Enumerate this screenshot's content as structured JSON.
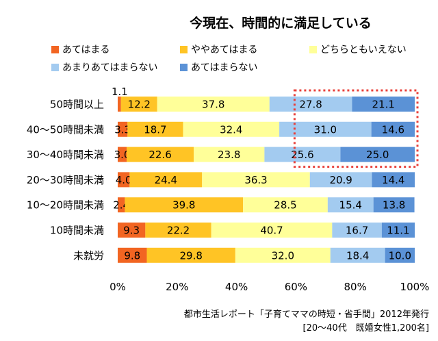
{
  "chart_data": {
    "type": "bar",
    "orientation": "horizontal",
    "stacked": "percent",
    "title": "今現在、時間的に満足している",
    "categories": [
      "50時間以上",
      "40～50時間未満",
      "30～40時間未満",
      "20～30時間未満",
      "10～20時間未満",
      "10時間未満",
      "未就労"
    ],
    "series": [
      {
        "name": "あてはまる",
        "color": "#f26522",
        "values": [
          1.1,
          3.3,
          3.0,
          4.0,
          2.4,
          9.3,
          9.8
        ]
      },
      {
        "name": "ややあてはまる",
        "color": "#ffc425",
        "values": [
          12.2,
          18.7,
          22.6,
          24.4,
          39.8,
          22.2,
          29.8
        ]
      },
      {
        "name": "どちらともいえない",
        "color": "#ffff99",
        "values": [
          37.8,
          32.4,
          23.8,
          36.3,
          28.5,
          40.7,
          32.0
        ]
      },
      {
        "name": "あまりあてはまらない",
        "color": "#a3cbf0",
        "values": [
          27.8,
          31.0,
          25.6,
          20.9,
          15.4,
          16.7,
          18.4
        ]
      },
      {
        "name": "あてはまらない",
        "color": "#5b92d6",
        "values": [
          21.1,
          14.6,
          25.0,
          14.4,
          13.8,
          11.1,
          10.0
        ]
      }
    ],
    "value_labels": [
      [
        "1.1",
        "12.2",
        "37.8",
        "27.8",
        "21.1"
      ],
      [
        "3.3",
        "18.7",
        "32.4",
        "31.0",
        "14.6"
      ],
      [
        "3.0",
        "22.6",
        "23.8",
        "25.6",
        "25.0"
      ],
      [
        "4.0",
        "24.4",
        "36.3",
        "20.9",
        "14.4"
      ],
      [
        "2.4",
        "39.8",
        "28.5",
        "15.4",
        "13.8"
      ],
      [
        "9.3",
        "22.2",
        "40.7",
        "16.7",
        "11.1"
      ],
      [
        "9.8",
        "29.8",
        "32.0",
        "18.4",
        "10.0"
      ]
    ],
    "xlim": [
      0,
      100
    ],
    "xticks": [
      "0%",
      "20%",
      "40%",
      "60%",
      "80%",
      "100%"
    ],
    "grid": false,
    "legend_position": "top",
    "highlight": {
      "categories": [
        "50時間以上",
        "40～50時間未満",
        "30～40時間未満"
      ],
      "range_percent": [
        60,
        100
      ],
      "style": "red dotted box",
      "color": "#e8403a"
    },
    "source_line1": "都市生活レポート「子育てママの時短・省手間」2012年発行",
    "source_line2": "[20～40代　既婚女性1,200名]"
  }
}
